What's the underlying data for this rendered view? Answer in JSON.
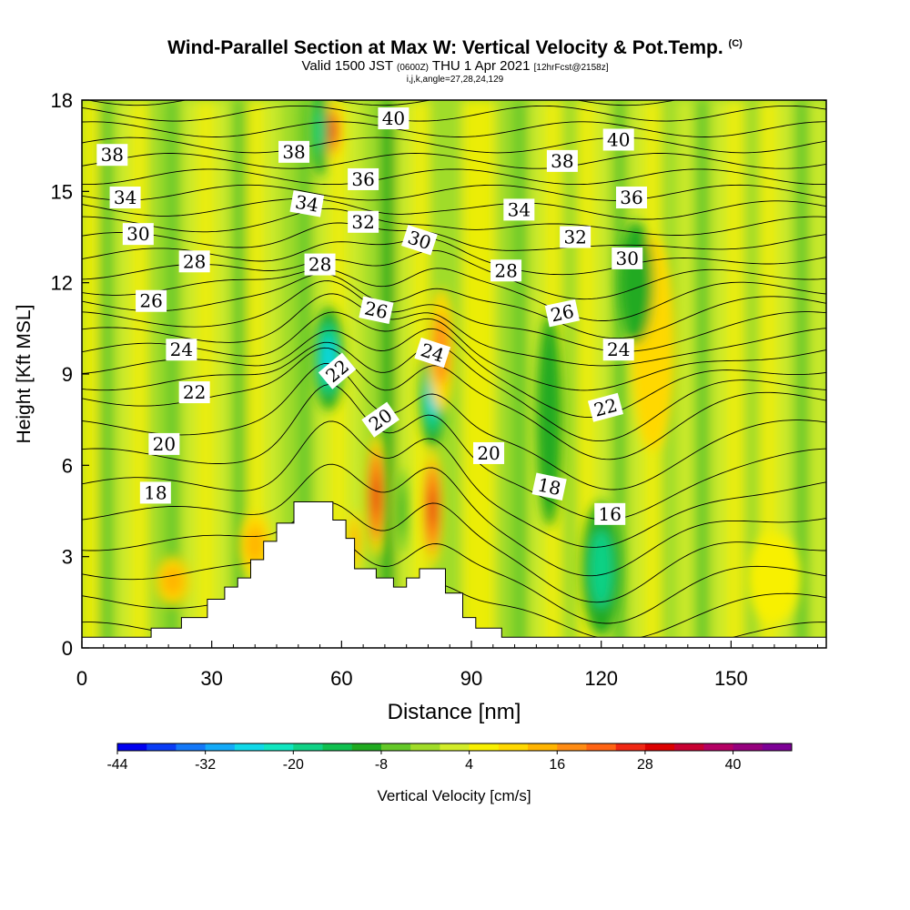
{
  "header": {
    "title": "Wind-Parallel Section at Max W: Vertical Velocity & Pot.Temp.",
    "copyright": "(C)",
    "valid_a": "Valid 1500 JST",
    "valid_utc": "(0600Z)",
    "valid_b": "THU 1 Apr 2021",
    "forecast": "[12hrFcst@2158z]",
    "indices": "i,j,k,angle=27,28,24,129"
  },
  "chart_data": {
    "type": "heatmap",
    "title": "Wind-Parallel Section at Max W: Vertical Velocity & Pot.Temp.",
    "xlabel": "Distance [nm]",
    "ylabel": "Height [Kft MSL]",
    "xlim": [
      0,
      172
    ],
    "ylim": [
      0,
      18
    ],
    "x_ticks": [
      0,
      30,
      60,
      90,
      120,
      150
    ],
    "y_ticks": [
      0,
      3,
      6,
      9,
      12,
      15,
      18
    ],
    "grid": false,
    "colorbar": {
      "label": "Vertical Velocity [cm/s]",
      "tick_labels": [
        "-44",
        "-32",
        "-20",
        "-8",
        "4",
        "16",
        "28",
        "40"
      ],
      "range": [
        -44,
        48
      ],
      "colors": [
        "#0000f0",
        "#0a3cf5",
        "#1478f8",
        "#14aaf8",
        "#10d8e8",
        "#10e6c0",
        "#10d286",
        "#10c050",
        "#20aa20",
        "#64c828",
        "#a0dc28",
        "#d2ec28",
        "#f8f000",
        "#ffd800",
        "#ffb400",
        "#ff8c14",
        "#ff6414",
        "#f02814",
        "#dc0000",
        "#c80032",
        "#b40064",
        "#96007e",
        "#7d0096"
      ]
    },
    "vertical_velocity_blobs": [
      {
        "x": 68,
        "y": 5.0,
        "rx": 2.2,
        "ry": 2.0,
        "w": 30
      },
      {
        "x": 81,
        "y": 4.6,
        "rx": 2.2,
        "ry": 1.9,
        "w": 30
      },
      {
        "x": 74,
        "y": 4.5,
        "rx": 1.2,
        "ry": 1.4,
        "w": -12
      },
      {
        "x": 63,
        "y": 3.5,
        "rx": 1.5,
        "ry": 1.0,
        "w": 12
      },
      {
        "x": 58,
        "y": 17.0,
        "rx": 2.0,
        "ry": 1.0,
        "w": 25
      },
      {
        "x": 55,
        "y": 17.0,
        "rx": 2.0,
        "ry": 1.5,
        "w": -20
      },
      {
        "x": 57,
        "y": 9.5,
        "rx": 3.5,
        "ry": 1.7,
        "w": -25
      },
      {
        "x": 81,
        "y": 8.3,
        "rx": 3.0,
        "ry": 1.7,
        "w": -26
      },
      {
        "x": 83,
        "y": 9.8,
        "rx": 3.0,
        "ry": 2.0,
        "w": 16
      },
      {
        "x": 120,
        "y": 2.6,
        "rx": 4.5,
        "ry": 2.2,
        "w": -18
      },
      {
        "x": 21,
        "y": 2.2,
        "rx": 4.0,
        "ry": 0.8,
        "w": 14
      },
      {
        "x": 40,
        "y": 3.4,
        "rx": 3.5,
        "ry": 1.0,
        "w": 14
      },
      {
        "x": 160,
        "y": 2.3,
        "rx": 6.0,
        "ry": 1.5,
        "w": 6
      },
      {
        "x": 108,
        "y": 7.5,
        "rx": 3.0,
        "ry": 3.5,
        "w": -10
      },
      {
        "x": 132,
        "y": 10.0,
        "rx": 5.0,
        "ry": 3.5,
        "w": 8
      },
      {
        "x": 128,
        "y": 12.0,
        "rx": 4.0,
        "ry": 2.0,
        "w": -10
      }
    ],
    "terrain_outline": [
      [
        0,
        0.35
      ],
      [
        16,
        0.35
      ],
      [
        16,
        0.65
      ],
      [
        23,
        0.65
      ],
      [
        23,
        1.0
      ],
      [
        29,
        1.0
      ],
      [
        29,
        1.6
      ],
      [
        33,
        1.6
      ],
      [
        33,
        2.0
      ],
      [
        36,
        2.0
      ],
      [
        36,
        2.3
      ],
      [
        39,
        2.3
      ],
      [
        39,
        2.9
      ],
      [
        42,
        2.9
      ],
      [
        42,
        3.5
      ],
      [
        45,
        3.5
      ],
      [
        45,
        4.1
      ],
      [
        49,
        4.1
      ],
      [
        49,
        4.8
      ],
      [
        58,
        4.8
      ],
      [
        58,
        4.2
      ],
      [
        61,
        4.2
      ],
      [
        61,
        3.6
      ],
      [
        63,
        3.6
      ],
      [
        63,
        2.6
      ],
      [
        68,
        2.6
      ],
      [
        68,
        2.3
      ],
      [
        72,
        2.3
      ],
      [
        72,
        2.0
      ],
      [
        75,
        2.0
      ],
      [
        75,
        2.3
      ],
      [
        78,
        2.3
      ],
      [
        78,
        2.6
      ],
      [
        84,
        2.6
      ],
      [
        84,
        1.8
      ],
      [
        88,
        1.8
      ],
      [
        88,
        1.0
      ],
      [
        91,
        1.0
      ],
      [
        91,
        0.65
      ],
      [
        97,
        0.65
      ],
      [
        97,
        0.35
      ],
      [
        172,
        0.35
      ],
      [
        172,
        0
      ],
      [
        0,
        0
      ]
    ],
    "theta_levels": [
      14,
      15,
      16,
      17,
      18,
      19,
      20,
      21,
      22,
      23,
      24,
      25,
      26,
      27,
      28,
      29,
      30,
      31,
      32,
      33,
      34,
      35,
      36,
      37,
      38,
      39,
      40,
      41
    ],
    "contour_labels": [
      {
        "text": "38",
        "x": 7,
        "y": 16.2,
        "rot": 0
      },
      {
        "text": "34",
        "x": 10,
        "y": 14.8,
        "rot": 0
      },
      {
        "text": "30",
        "x": 13,
        "y": 13.6,
        "rot": 0
      },
      {
        "text": "28",
        "x": 26,
        "y": 12.7,
        "rot": 0
      },
      {
        "text": "26",
        "x": 16,
        "y": 11.4,
        "rot": 0
      },
      {
        "text": "24",
        "x": 23,
        "y": 9.8,
        "rot": 0
      },
      {
        "text": "22",
        "x": 26,
        "y": 8.4,
        "rot": 0
      },
      {
        "text": "20",
        "x": 19,
        "y": 6.7,
        "rot": 0
      },
      {
        "text": "18",
        "x": 17,
        "y": 5.1,
        "rot": 0
      },
      {
        "text": "38",
        "x": 49,
        "y": 16.3,
        "rot": 0
      },
      {
        "text": "34",
        "x": 52,
        "y": 14.6,
        "rot": 10
      },
      {
        "text": "28",
        "x": 55,
        "y": 12.6,
        "rot": 0
      },
      {
        "text": "40",
        "x": 72,
        "y": 17.4,
        "rot": 0
      },
      {
        "text": "36",
        "x": 65,
        "y": 15.4,
        "rot": 0
      },
      {
        "text": "32",
        "x": 65,
        "y": 14.0,
        "rot": 0
      },
      {
        "text": "26",
        "x": 68,
        "y": 11.1,
        "rot": 12
      },
      {
        "text": "22",
        "x": 59,
        "y": 9.1,
        "rot": -40
      },
      {
        "text": "20",
        "x": 69,
        "y": 7.5,
        "rot": -35
      },
      {
        "text": "30",
        "x": 78,
        "y": 13.4,
        "rot": 18
      },
      {
        "text": "24",
        "x": 81,
        "y": 9.7,
        "rot": 18
      },
      {
        "text": "40",
        "x": 124,
        "y": 16.7,
        "rot": 0
      },
      {
        "text": "38",
        "x": 111,
        "y": 16.0,
        "rot": 0
      },
      {
        "text": "36",
        "x": 127,
        "y": 14.8,
        "rot": 0
      },
      {
        "text": "34",
        "x": 101,
        "y": 14.4,
        "rot": 0
      },
      {
        "text": "32",
        "x": 114,
        "y": 13.5,
        "rot": 0
      },
      {
        "text": "30",
        "x": 126,
        "y": 12.8,
        "rot": 0
      },
      {
        "text": "28",
        "x": 98,
        "y": 12.4,
        "rot": 0
      },
      {
        "text": "26",
        "x": 111,
        "y": 11.0,
        "rot": -12
      },
      {
        "text": "24",
        "x": 124,
        "y": 9.8,
        "rot": 0
      },
      {
        "text": "22",
        "x": 121,
        "y": 7.9,
        "rot": -15
      },
      {
        "text": "20",
        "x": 94,
        "y": 6.4,
        "rot": 0
      },
      {
        "text": "18",
        "x": 108,
        "y": 5.3,
        "rot": 12
      },
      {
        "text": "16",
        "x": 122,
        "y": 4.4,
        "rot": 0
      }
    ]
  }
}
